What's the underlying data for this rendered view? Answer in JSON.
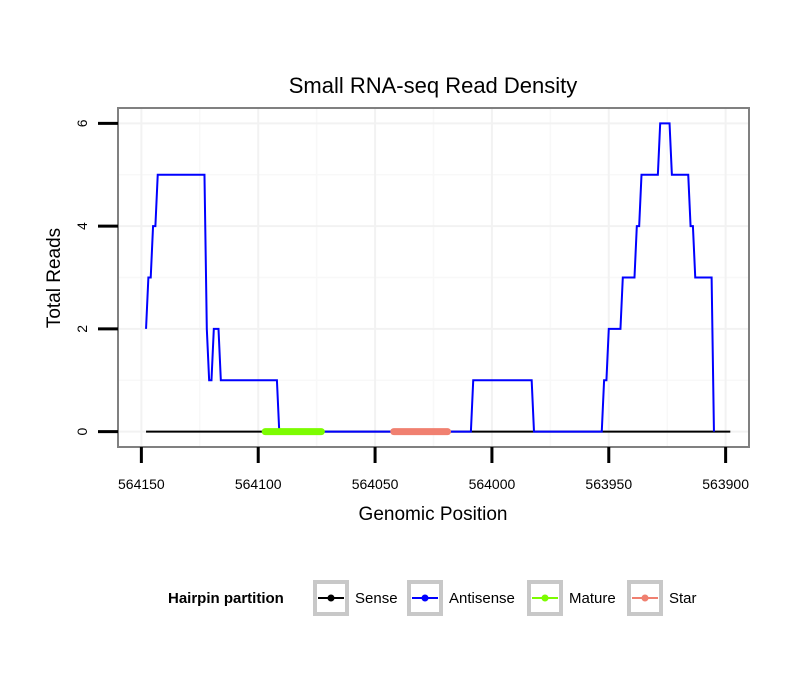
{
  "chart_data": {
    "type": "line",
    "title": "Small RNA-seq Read Density",
    "xlabel": "Genomic Position",
    "ylabel": "Total Reads",
    "xlim": [
      564160,
      563890
    ],
    "ylim": [
      -0.3,
      6.3
    ],
    "x_reversed": true,
    "grid": true,
    "x_ticks": [
      564150,
      564100,
      564050,
      564000,
      563950,
      563900
    ],
    "x_tick_labels": [
      "564150",
      "564100",
      "564050",
      "564000",
      "563950",
      "563900"
    ],
    "y_ticks": [
      0,
      2,
      4,
      6
    ],
    "y_tick_labels": [
      "0",
      "2",
      "4",
      "6"
    ],
    "legend": {
      "title": "Hairpin partition",
      "position": "bottom",
      "entries": [
        "Sense",
        "Antisense",
        "Mature",
        "Star"
      ]
    },
    "series": [
      {
        "name": "Sense",
        "color": "#000000",
        "width": "thin",
        "points": [
          [
            564148,
            0
          ],
          [
            563898,
            0
          ]
        ]
      },
      {
        "name": "Antisense",
        "color": "#0000ff",
        "width": "thin",
        "points": [
          [
            564148,
            2
          ],
          [
            564147,
            3
          ],
          [
            564146,
            3
          ],
          [
            564145,
            4
          ],
          [
            564144,
            4
          ],
          [
            564143,
            5
          ],
          [
            564123,
            5
          ],
          [
            564122,
            2
          ],
          [
            564121,
            1
          ],
          [
            564120,
            1
          ],
          [
            564119,
            2
          ],
          [
            564117,
            2
          ],
          [
            564116,
            1
          ],
          [
            564092,
            1
          ],
          [
            564091,
            0
          ],
          [
            564009,
            0
          ],
          [
            564008,
            1
          ],
          [
            563983,
            1
          ],
          [
            563982,
            0
          ],
          [
            563953,
            0
          ],
          [
            563952,
            1
          ],
          [
            563951,
            1
          ],
          [
            563950,
            2
          ],
          [
            563945,
            2
          ],
          [
            563944,
            3
          ],
          [
            563939,
            3
          ],
          [
            563938,
            4
          ],
          [
            563937,
            4
          ],
          [
            563936,
            5
          ],
          [
            563929,
            5
          ],
          [
            563928,
            6
          ],
          [
            563924,
            6
          ],
          [
            563923,
            5
          ],
          [
            563916,
            5
          ],
          [
            563915,
            4
          ],
          [
            563914,
            4
          ],
          [
            563913,
            3
          ],
          [
            563906,
            3
          ],
          [
            563905,
            0
          ]
        ]
      },
      {
        "name": "Mature",
        "color": "#7cfc00",
        "width": "thick",
        "points": [
          [
            564097,
            0
          ],
          [
            564073,
            0
          ]
        ]
      },
      {
        "name": "Star",
        "color": "#f08070",
        "width": "thick",
        "points": [
          [
            564042,
            0
          ],
          [
            564019,
            0
          ]
        ]
      }
    ]
  }
}
